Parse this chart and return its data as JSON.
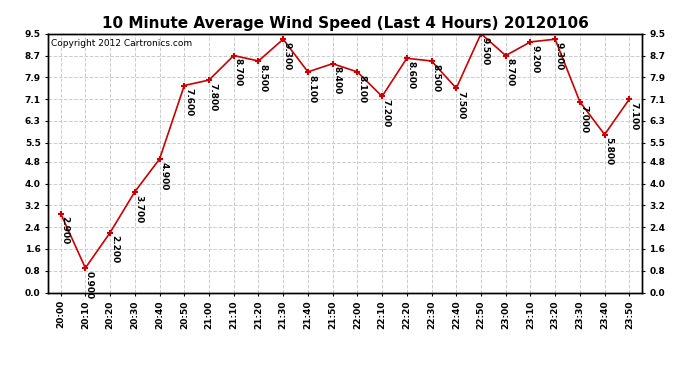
{
  "title": "10 Minute Average Wind Speed (Last 4 Hours) 20120106",
  "copyright": "Copyright 2012 Cartronics.com",
  "times": [
    "20:00",
    "20:10",
    "20:20",
    "20:30",
    "20:40",
    "20:50",
    "21:00",
    "21:10",
    "21:20",
    "21:30",
    "21:40",
    "21:50",
    "22:00",
    "22:10",
    "22:20",
    "22:30",
    "22:40",
    "22:50",
    "23:00",
    "23:10",
    "23:20",
    "23:30",
    "23:40",
    "23:50"
  ],
  "values": [
    2.9,
    0.9,
    2.2,
    3.7,
    4.9,
    7.6,
    7.8,
    8.7,
    8.5,
    9.3,
    8.1,
    8.4,
    8.1,
    7.2,
    8.6,
    8.5,
    7.5,
    9.5,
    8.7,
    9.2,
    9.3,
    7.0,
    5.8,
    7.1
  ],
  "ylim": [
    0.0,
    9.5
  ],
  "yticks": [
    0.0,
    0.8,
    1.6,
    2.4,
    3.2,
    4.0,
    4.8,
    5.5,
    6.3,
    7.1,
    7.9,
    8.7,
    9.5
  ],
  "line_color": "#cc0000",
  "marker_color": "#cc0000",
  "bg_color": "#ffffff",
  "grid_color": "#cccccc",
  "title_fontsize": 11,
  "label_fontsize": 6.5,
  "annotation_fontsize": 6.5,
  "copyright_fontsize": 6.5
}
